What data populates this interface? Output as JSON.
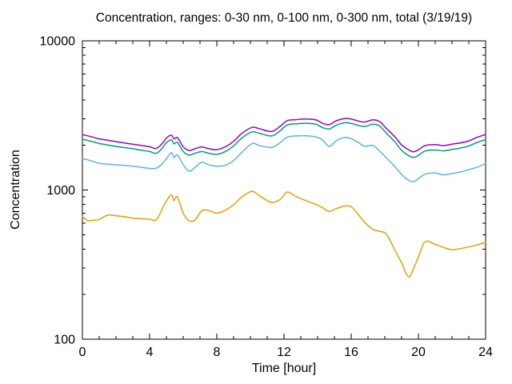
{
  "figure": {
    "background": "#ffffff",
    "text_color": "#000000",
    "axis_color": "#000000"
  },
  "chart_data": {
    "type": "line",
    "title": "Concentration, ranges: 0-30 nm, 0-100 nm, 0-300 nm, total (3/19/19)",
    "xlabel": "Time [hour]",
    "ylabel": "Concentration",
    "x_scale": "linear",
    "y_scale": "log10",
    "xlim": [
      0,
      24
    ],
    "ylim": [
      100,
      10000
    ],
    "x_ticks": [
      0,
      4,
      8,
      12,
      16,
      20,
      24
    ],
    "x_minor_ticks": [
      1,
      2,
      3,
      5,
      6,
      7,
      9,
      10,
      11,
      13,
      14,
      15,
      17,
      18,
      19,
      21,
      22,
      23
    ],
    "y_ticks": [
      100,
      1000,
      10000
    ],
    "y_minor_ticks": [
      200,
      300,
      400,
      500,
      600,
      700,
      800,
      900,
      2000,
      3000,
      4000,
      5000,
      6000,
      7000,
      8000,
      9000
    ],
    "grid": false,
    "legend": "none",
    "line_width": 1.5,
    "x": [
      0,
      0.3,
      0.7,
      1,
      1.5,
      2,
      2.5,
      3,
      3.5,
      4,
      4.4,
      4.75,
      5,
      5.3,
      5.45,
      5.65,
      6,
      6.35,
      6.7,
      7.1,
      7.5,
      8,
      8.5,
      9,
      9.5,
      10.1,
      10.5,
      11.1,
      11.4,
      11.8,
      12.2,
      12.7,
      13.3,
      13.9,
      14.3,
      14.7,
      15.1,
      15.6,
      16,
      16.4,
      16.8,
      17.3,
      17.7,
      18.1,
      18.6,
      19,
      19.4,
      19.7,
      20,
      20.4,
      21,
      21.5,
      22,
      22.5,
      23,
      23.5,
      24
    ],
    "series": [
      {
        "name": "0-30 nm",
        "color": "#e69f00",
        "values": [
          665,
          625,
          628,
          635,
          678,
          672,
          663,
          648,
          642,
          638,
          630,
          748,
          845,
          930,
          850,
          900,
          700,
          622,
          630,
          725,
          730,
          700,
          732,
          795,
          900,
          980,
          920,
          838,
          828,
          870,
          970,
          905,
          850,
          800,
          760,
          718,
          750,
          780,
          772,
          690,
          608,
          545,
          528,
          505,
          395,
          325,
          262,
          295,
          355,
          450,
          432,
          412,
          398,
          405,
          415,
          428,
          447
        ]
      },
      {
        "name": "0-100 nm",
        "color": "#56b4e9",
        "values": [
          1620,
          1595,
          1545,
          1510,
          1490,
          1475,
          1460,
          1445,
          1420,
          1395,
          1400,
          1500,
          1620,
          1780,
          1650,
          1720,
          1480,
          1335,
          1415,
          1535,
          1475,
          1445,
          1460,
          1575,
          1790,
          2050,
          1990,
          1930,
          1945,
          2090,
          2260,
          2305,
          2310,
          2270,
          2160,
          1960,
          2135,
          2250,
          2210,
          2090,
          1965,
          1990,
          1820,
          1640,
          1435,
          1270,
          1165,
          1135,
          1190,
          1275,
          1300,
          1265,
          1290,
          1320,
          1370,
          1420,
          1505
        ]
      },
      {
        "name": "0-300 nm",
        "color": "#009e73",
        "values": [
          2190,
          2150,
          2095,
          2050,
          2005,
          1960,
          1925,
          1890,
          1850,
          1810,
          1760,
          1905,
          2075,
          2165,
          2040,
          2085,
          1810,
          1715,
          1760,
          1810,
          1765,
          1735,
          1810,
          1975,
          2235,
          2455,
          2405,
          2310,
          2330,
          2510,
          2730,
          2775,
          2800,
          2760,
          2620,
          2565,
          2715,
          2820,
          2795,
          2715,
          2665,
          2760,
          2680,
          2400,
          2100,
          1845,
          1705,
          1655,
          1705,
          1825,
          1855,
          1830,
          1870,
          1910,
          1975,
          2085,
          2180
        ]
      },
      {
        "name": "total",
        "color": "#9400d3",
        "values": [
          2350,
          2310,
          2250,
          2200,
          2155,
          2110,
          2065,
          2030,
          1990,
          1950,
          1900,
          2050,
          2230,
          2330,
          2200,
          2245,
          1950,
          1840,
          1890,
          1945,
          1895,
          1865,
          1945,
          2120,
          2400,
          2630,
          2580,
          2475,
          2495,
          2690,
          2920,
          2960,
          2990,
          2950,
          2800,
          2745,
          2905,
          3015,
          2990,
          2905,
          2855,
          2955,
          2870,
          2580,
          2270,
          2005,
          1865,
          1805,
          1860,
          1985,
          2015,
          1985,
          2030,
          2070,
          2135,
          2255,
          2360
        ]
      }
    ]
  }
}
